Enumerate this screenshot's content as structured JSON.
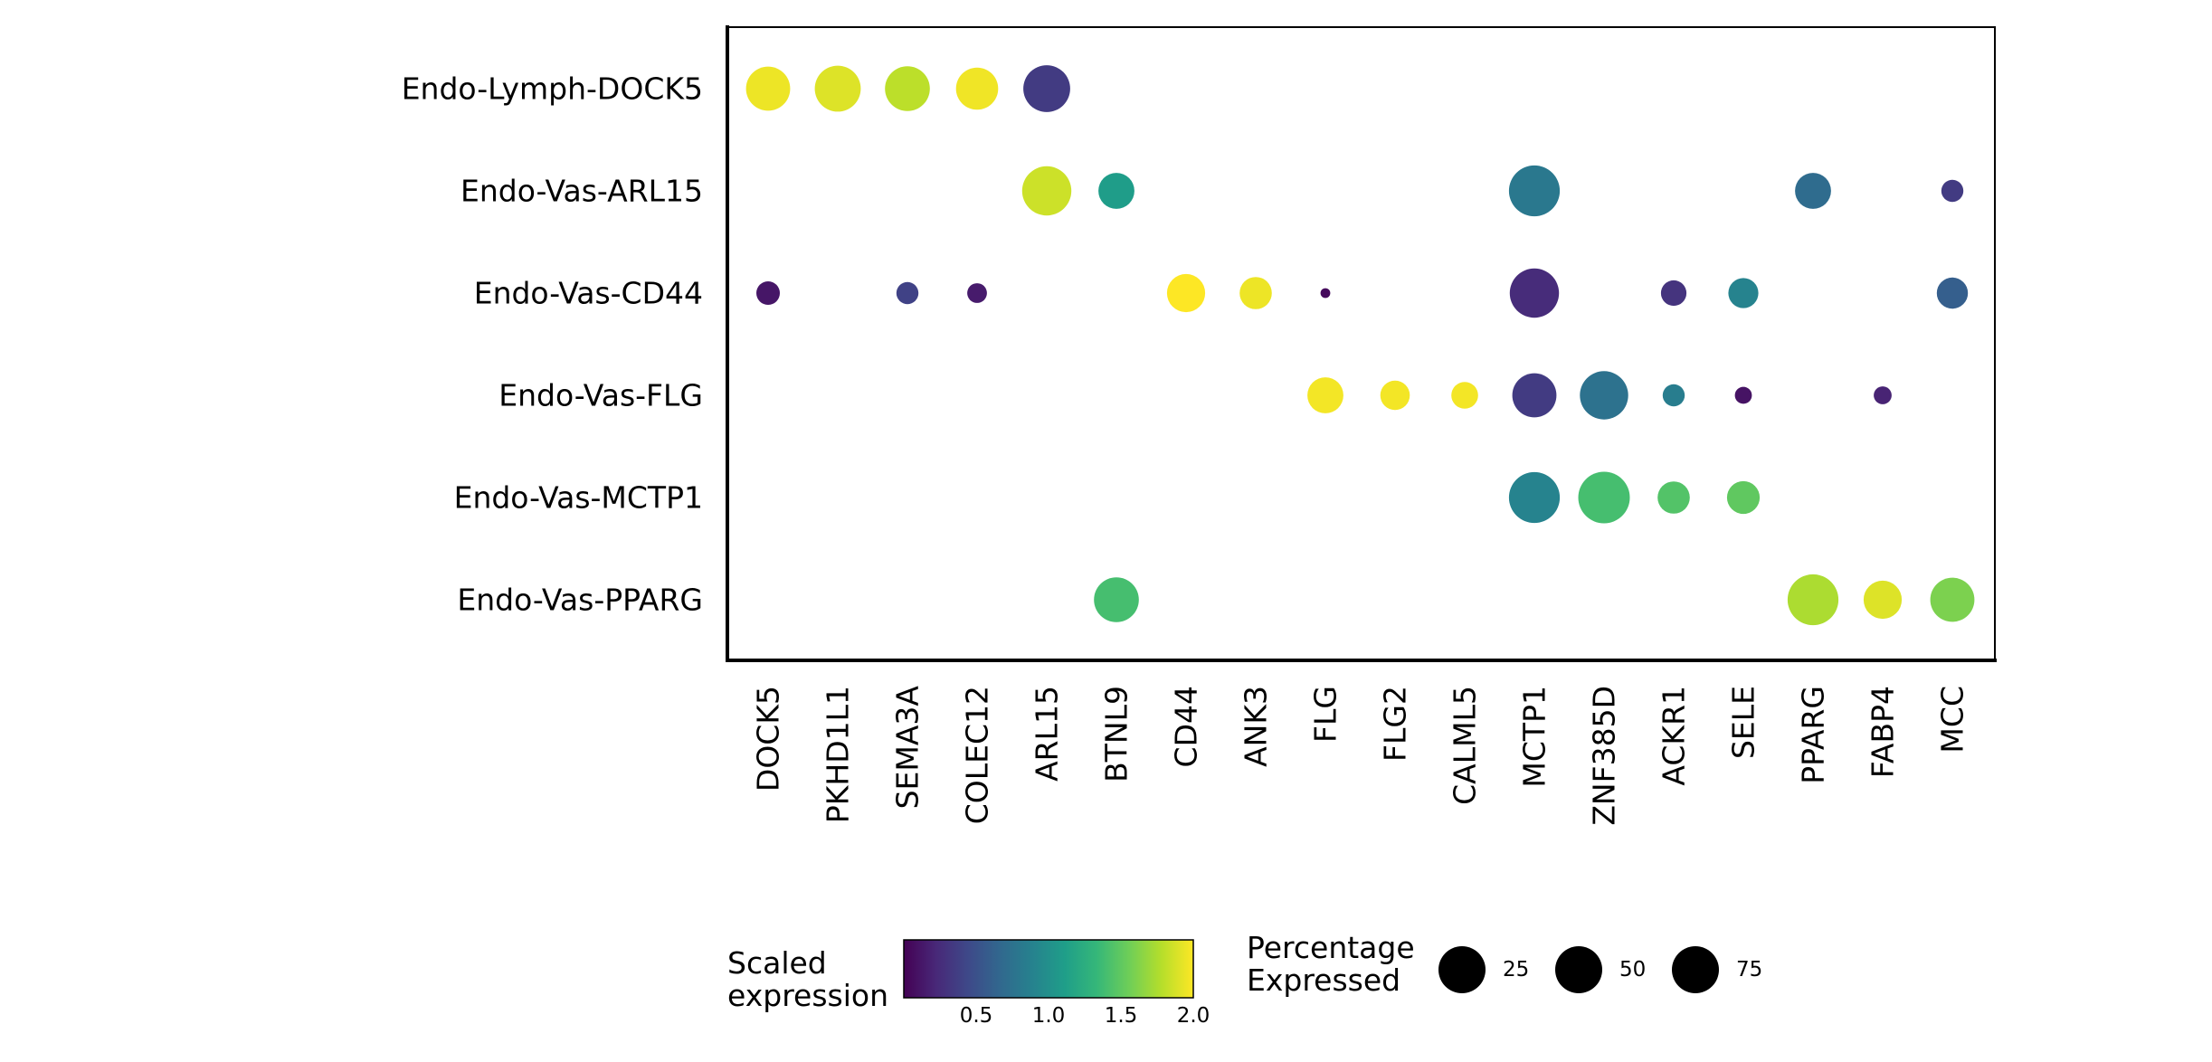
{
  "chart_data": {
    "type": "dotplot",
    "genes": [
      "DOCK5",
      "PKHD1L1",
      "SEMA3A",
      "COLEC12",
      "ARL15",
      "BTNL9",
      "CD44",
      "ANK3",
      "FLG",
      "FLG2",
      "CALML5",
      "MCTP1",
      "ZNF385D",
      "ACKR1",
      "SELE",
      "PPARG",
      "FABP4",
      "MCC"
    ],
    "cell_types": [
      "Endo-Lymph-DOCK5",
      "Endo-Vas-ARL15",
      "Endo-Vas-CD44",
      "Endo-Vas-FLG",
      "Endo-Vas-MCTP1",
      "Endo-Vas-PPARG"
    ],
    "points": [
      {
        "cell_type": "Endo-Lymph-DOCK5",
        "gene": "DOCK5",
        "pct": 60,
        "expr": 1.95
      },
      {
        "cell_type": "Endo-Lymph-DOCK5",
        "gene": "PKHD1L1",
        "pct": 65,
        "expr": 1.9
      },
      {
        "cell_type": "Endo-Lymph-DOCK5",
        "gene": "SEMA3A",
        "pct": 62,
        "expr": 1.8
      },
      {
        "cell_type": "Endo-Lymph-DOCK5",
        "gene": "COLEC12",
        "pct": 55,
        "expr": 1.96
      },
      {
        "cell_type": "Endo-Lymph-DOCK5",
        "gene": "ARL15",
        "pct": 68,
        "expr": 0.35
      },
      {
        "cell_type": "Endo-Vas-ARL15",
        "gene": "ARL15",
        "pct": 75,
        "expr": 1.85
      },
      {
        "cell_type": "Endo-Vas-ARL15",
        "gene": "BTNL9",
        "pct": 40,
        "expr": 1.1
      },
      {
        "cell_type": "Endo-Vas-ARL15",
        "gene": "MCTP1",
        "pct": 80,
        "expr": 0.8
      },
      {
        "cell_type": "Endo-Vas-ARL15",
        "gene": "PPARG",
        "pct": 40,
        "expr": 0.7
      },
      {
        "cell_type": "Endo-Vas-ARL15",
        "gene": "MCC",
        "pct": 15,
        "expr": 0.35
      },
      {
        "cell_type": "Endo-Vas-CD44",
        "gene": "DOCK5",
        "pct": 17,
        "expr": 0.12
      },
      {
        "cell_type": "Endo-Vas-CD44",
        "gene": "SEMA3A",
        "pct": 15,
        "expr": 0.4
      },
      {
        "cell_type": "Endo-Vas-CD44",
        "gene": "COLEC12",
        "pct": 12,
        "expr": 0.15
      },
      {
        "cell_type": "Endo-Vas-CD44",
        "gene": "CD44",
        "pct": 45,
        "expr": 2.0
      },
      {
        "cell_type": "Endo-Vas-CD44",
        "gene": "ANK3",
        "pct": 32,
        "expr": 1.95
      },
      {
        "cell_type": "Endo-Vas-CD44",
        "gene": "FLG",
        "pct": 3,
        "expr": 0.05
      },
      {
        "cell_type": "Endo-Vas-CD44",
        "gene": "MCTP1",
        "pct": 75,
        "expr": 0.25
      },
      {
        "cell_type": "Endo-Vas-CD44",
        "gene": "ACKR1",
        "pct": 20,
        "expr": 0.3
      },
      {
        "cell_type": "Endo-Vas-CD44",
        "gene": "SELE",
        "pct": 28,
        "expr": 0.9
      },
      {
        "cell_type": "Endo-Vas-CD44",
        "gene": "MCC",
        "pct": 30,
        "expr": 0.6
      },
      {
        "cell_type": "Endo-Vas-FLG",
        "gene": "FLG",
        "pct": 40,
        "expr": 1.97
      },
      {
        "cell_type": "Endo-Vas-FLG",
        "gene": "FLG2",
        "pct": 27,
        "expr": 1.97
      },
      {
        "cell_type": "Endo-Vas-FLG",
        "gene": "CALML5",
        "pct": 22,
        "expr": 1.97
      },
      {
        "cell_type": "Endo-Vas-FLG",
        "gene": "MCTP1",
        "pct": 60,
        "expr": 0.35
      },
      {
        "cell_type": "Endo-Vas-FLG",
        "gene": "ZNF385D",
        "pct": 72,
        "expr": 0.75
      },
      {
        "cell_type": "Endo-Vas-FLG",
        "gene": "ACKR1",
        "pct": 15,
        "expr": 0.85
      },
      {
        "cell_type": "Endo-Vas-FLG",
        "gene": "SELE",
        "pct": 9,
        "expr": 0.1
      },
      {
        "cell_type": "Endo-Vas-FLG",
        "gene": "FABP4",
        "pct": 10,
        "expr": 0.2
      },
      {
        "cell_type": "Endo-Vas-MCTP1",
        "gene": "MCTP1",
        "pct": 80,
        "expr": 0.9
      },
      {
        "cell_type": "Endo-Vas-MCTP1",
        "gene": "ZNF385D",
        "pct": 82,
        "expr": 1.4
      },
      {
        "cell_type": "Endo-Vas-MCTP1",
        "gene": "ACKR1",
        "pct": 32,
        "expr": 1.45
      },
      {
        "cell_type": "Endo-Vas-MCTP1",
        "gene": "SELE",
        "pct": 33,
        "expr": 1.5
      },
      {
        "cell_type": "Endo-Vas-PPARG",
        "gene": "BTNL9",
        "pct": 62,
        "expr": 1.4
      },
      {
        "cell_type": "Endo-Vas-PPARG",
        "gene": "PPARG",
        "pct": 80,
        "expr": 1.75
      },
      {
        "cell_type": "Endo-Vas-PPARG",
        "gene": "FABP4",
        "pct": 45,
        "expr": 1.9
      },
      {
        "cell_type": "Endo-Vas-PPARG",
        "gene": "MCC",
        "pct": 60,
        "expr": 1.6
      }
    ],
    "color_legend": {
      "title_lines": [
        "Scaled",
        "expression"
      ],
      "range": [
        0,
        2.0
      ],
      "ticks": [
        "0.5",
        "1.0",
        "1.5",
        "2.0"
      ],
      "tick_values": [
        0.5,
        1.0,
        1.5,
        2.0
      ],
      "colormap": "viridis",
      "stops": [
        "#440154",
        "#482878",
        "#3e4989",
        "#31688e",
        "#26828e",
        "#1f9e89",
        "#35b779",
        "#6ece58",
        "#b5de2b",
        "#fde725"
      ]
    },
    "size_legend": {
      "title_lines": [
        "Percentage",
        "Expressed"
      ],
      "values": [
        25,
        50,
        75
      ],
      "labels": [
        "25",
        "50",
        "75"
      ]
    },
    "grid": false,
    "frame": "box"
  }
}
